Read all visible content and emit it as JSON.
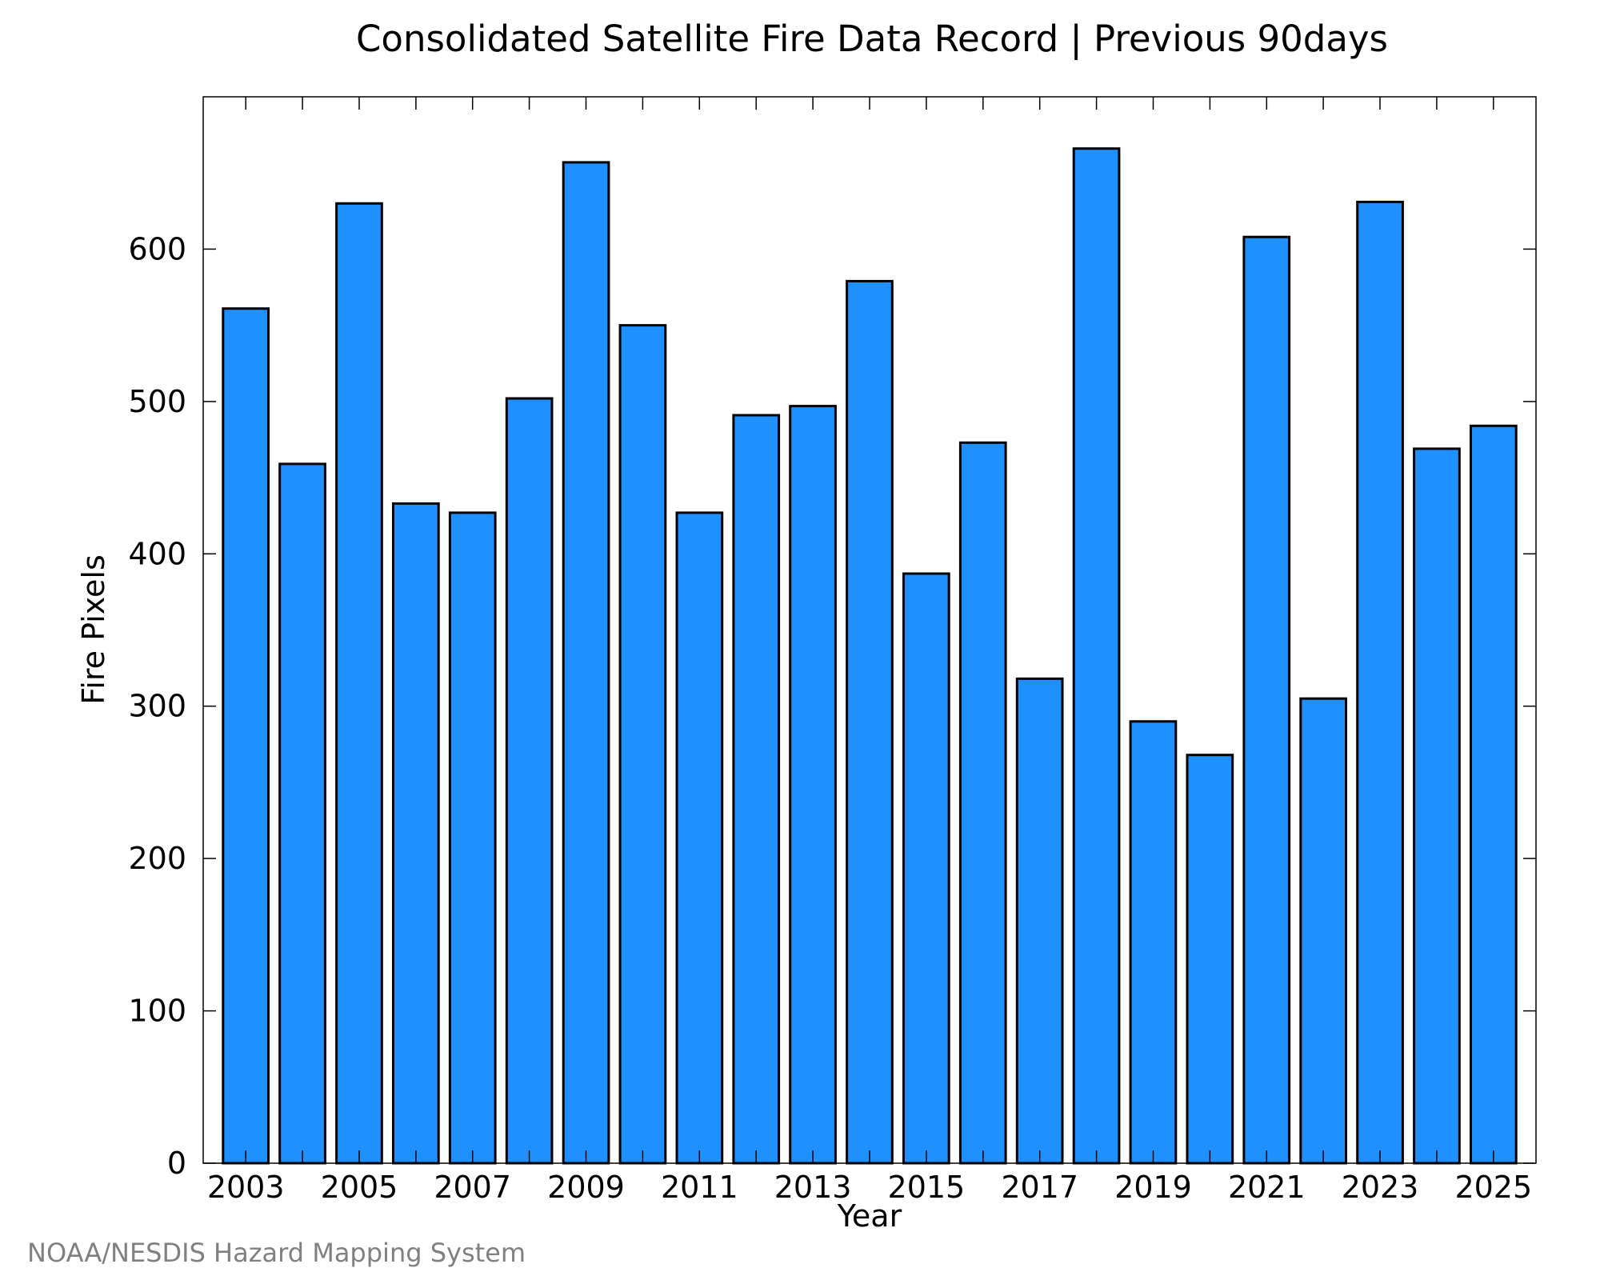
{
  "chart_data": {
    "type": "bar",
    "title": "Consolidated Satellite Fire Data Record | Previous 90days",
    "xlabel": "Year",
    "ylabel": "Fire Pixels",
    "categories": [
      "2003",
      "2004",
      "2005",
      "2006",
      "2007",
      "2008",
      "2009",
      "2010",
      "2011",
      "2012",
      "2013",
      "2014",
      "2015",
      "2016",
      "2017",
      "2018",
      "2019",
      "2020",
      "2021",
      "2022",
      "2023",
      "2024",
      "2025"
    ],
    "values": [
      561,
      459,
      630,
      433,
      427,
      502,
      657,
      550,
      427,
      491,
      497,
      579,
      387,
      473,
      318,
      666,
      290,
      268,
      608,
      305,
      631,
      469,
      484
    ],
    "x_tick_labels": [
      "2003",
      "2005",
      "2007",
      "2009",
      "2011",
      "2013",
      "2015",
      "2017",
      "2019",
      "2021",
      "2023",
      "2025"
    ],
    "y_tick_labels": [
      "0",
      "100",
      "200",
      "300",
      "400",
      "500",
      "600"
    ],
    "ylim": [
      0,
      700
    ],
    "bar_color": "#1e90ff",
    "grid": false,
    "legend": "none"
  },
  "credit": "NOAA/NESDIS Hazard Mapping System"
}
